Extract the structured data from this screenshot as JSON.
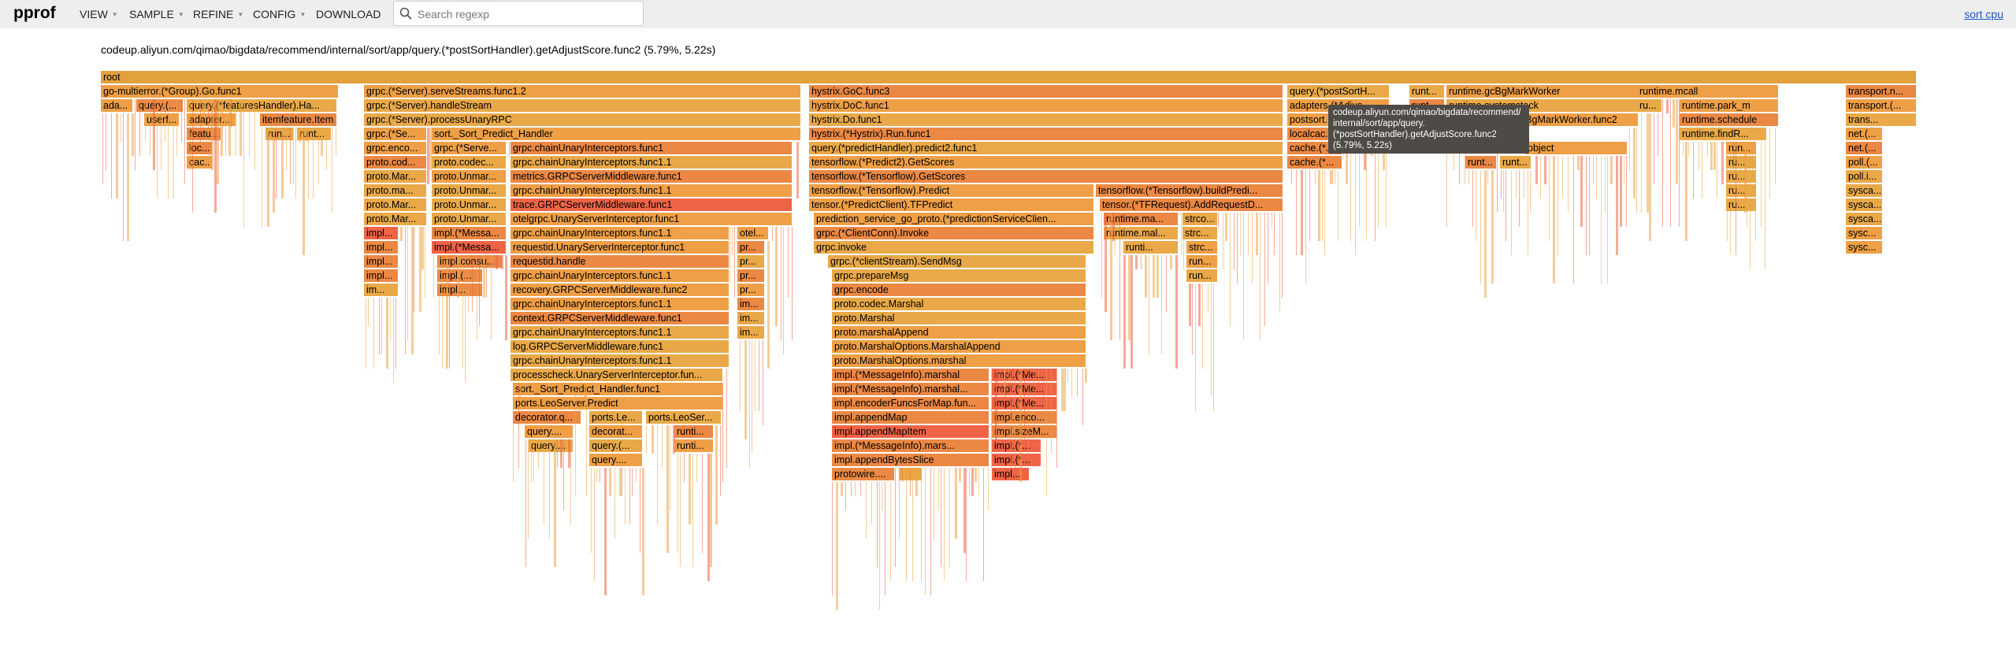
{
  "app": {
    "name": "pprof"
  },
  "menu": {
    "view": "VIEW",
    "sample": "SAMPLE",
    "refine": "REFINE",
    "config": "CONFIG",
    "download": "DOWNLOAD"
  },
  "search": {
    "placeholder": "Search regexp",
    "value": ""
  },
  "sort_link": "sort cpu",
  "details": "codeup.aliyun.com/qimao/bigdata/recommend/internal/sort/app/query.(*postSortHandler).getAdjustScore.func2 (5.79%, 5.22s)",
  "tooltip": {
    "line1": "codeup.aliyun.com/qimao/bigdata/recommend/",
    "line2": "internal/sort/app/query.",
    "line3": "(*postSortHandler).getAdjustScore.func2",
    "line4": "(5.79%, 5.22s)"
  },
  "colors": {
    "root": "#e3a13d",
    "orange": "#ef9f45",
    "amber": "#e9a948",
    "deep_orange": "#eb8944",
    "red": "#ef6346",
    "link": "#1a56c6"
  },
  "flame": {
    "frames": [
      {
        "d": 0,
        "s": 128,
        "e": 2433,
        "t": "root"
      },
      {
        "d": 1,
        "s": 128,
        "e": 430,
        "t": "go-multierror.(*Group).Go.func1"
      },
      {
        "d": 1,
        "s": 462,
        "e": 1017,
        "t": "grpc.(*Server).serveStreams.func1.2"
      },
      {
        "d": 1,
        "s": 1027,
        "e": 1629,
        "t": "hystrix.GoC.func3"
      },
      {
        "d": 1,
        "s": 1634,
        "e": 1764,
        "t": "query.(*postSortH..."
      },
      {
        "d": 1,
        "s": 1789,
        "e": 1834,
        "t": "runt..."
      },
      {
        "d": 1,
        "s": 1836,
        "e": 2080,
        "t": "runtime.gcBgMarkWorker"
      },
      {
        "d": 1,
        "s": 2078,
        "e": 2258,
        "t": "runtime.mcall"
      },
      {
        "d": 1,
        "s": 2343,
        "e": 2433,
        "t": "transport.n..."
      },
      {
        "d": 2,
        "s": 128,
        "e": 169,
        "t": "ada..."
      },
      {
        "d": 2,
        "s": 173,
        "e": 233,
        "t": "query.(..."
      },
      {
        "d": 2,
        "s": 237,
        "e": 428,
        "t": "query.(*featuresHandler).Ha..."
      },
      {
        "d": 2,
        "s": 462,
        "e": 1017,
        "t": "grpc.(*Server).handleStream"
      },
      {
        "d": 2,
        "s": 1027,
        "e": 1629,
        "t": "hystrix.DoC.func1"
      },
      {
        "d": 2,
        "s": 1634,
        "e": 1764,
        "t": "adapters.(*Adjus..."
      },
      {
        "d": 2,
        "s": 1789,
        "e": 1834,
        "t": "runt..."
      },
      {
        "d": 2,
        "s": 1836,
        "e": 2080,
        "t": "runtime.systemstack"
      },
      {
        "d": 2,
        "s": 2078,
        "e": 2110,
        "t": "ru..."
      },
      {
        "d": 2,
        "s": 2132,
        "e": 2258,
        "t": "runtime.park_m"
      },
      {
        "d": 2,
        "s": 2343,
        "e": 2433,
        "t": "transport.(..."
      },
      {
        "d": 3,
        "s": 183,
        "e": 228,
        "t": "userf..."
      },
      {
        "d": 3,
        "s": 237,
        "e": 300,
        "t": "adapter..."
      },
      {
        "d": 3,
        "s": 330,
        "e": 428,
        "t": "itemfeature.Item..."
      },
      {
        "d": 3,
        "s": 462,
        "e": 1017,
        "t": "grpc.(*Server).processUnaryRPC"
      },
      {
        "d": 3,
        "s": 1027,
        "e": 1629,
        "t": "hystrix.Do.func1"
      },
      {
        "d": 3,
        "s": 1634,
        "e": 1764,
        "t": "postsort..."
      },
      {
        "d": 3,
        "s": 1920,
        "e": 2080,
        "t": "gcBgMarkWorker.func2"
      },
      {
        "d": 3,
        "s": 2132,
        "e": 2258,
        "t": "runtime.schedule"
      },
      {
        "d": 3,
        "s": 2343,
        "e": 2433,
        "t": "trans..."
      },
      {
        "d": 4,
        "s": 237,
        "e": 281,
        "t": "featu..."
      },
      {
        "d": 4,
        "s": 337,
        "e": 373,
        "t": "run..."
      },
      {
        "d": 4,
        "s": 377,
        "e": 421,
        "t": "runt..."
      },
      {
        "d": 4,
        "s": 462,
        "e": 542,
        "t": "grpc.(*Se..."
      },
      {
        "d": 4,
        "s": 548,
        "e": 1017,
        "t": "sort._Sort_Predict_Handler"
      },
      {
        "d": 4,
        "s": 1027,
        "e": 1629,
        "t": "hystrix.(*Hystrix).Run.func1"
      },
      {
        "d": 4,
        "s": 1634,
        "e": 1700,
        "t": "localcac..."
      },
      {
        "d": 4,
        "s": 2132,
        "e": 2243,
        "t": "runtime.findR..."
      },
      {
        "d": 4,
        "s": 2343,
        "e": 2390,
        "t": "net.(..."
      },
      {
        "d": 5,
        "s": 237,
        "e": 270,
        "t": "loc..."
      },
      {
        "d": 5,
        "s": 462,
        "e": 542,
        "t": "grpc.enco..."
      },
      {
        "d": 5,
        "s": 548,
        "e": 643,
        "t": "grpc.(*Serve..."
      },
      {
        "d": 5,
        "s": 648,
        "e": 1006,
        "t": "grpc.chainUnaryInterceptors.func1"
      },
      {
        "d": 5,
        "s": 1027,
        "e": 1629,
        "t": "query.(*predictHandler).predict2.func1"
      },
      {
        "d": 5,
        "s": 1634,
        "e": 1704,
        "t": "cache.(*..."
      },
      {
        "d": 5,
        "s": 1936,
        "e": 2066,
        "t": "object"
      },
      {
        "d": 5,
        "s": 2191,
        "e": 2230,
        "t": "run..."
      },
      {
        "d": 5,
        "s": 2343,
        "e": 2390,
        "t": "net.(..."
      },
      {
        "d": 6,
        "s": 237,
        "e": 270,
        "t": "cac..."
      },
      {
        "d": 6,
        "s": 462,
        "e": 542,
        "t": "proto.cod..."
      },
      {
        "d": 6,
        "s": 548,
        "e": 643,
        "t": "proto.codec..."
      },
      {
        "d": 6,
        "s": 648,
        "e": 1006,
        "t": "grpc.chainUnaryInterceptors.func1.1"
      },
      {
        "d": 6,
        "s": 1027,
        "e": 1629,
        "t": "tensorflow.(*Predict2).GetScores"
      },
      {
        "d": 6,
        "s": 1634,
        "e": 1704,
        "t": "cache.(*..."
      },
      {
        "d": 6,
        "s": 1860,
        "e": 1900,
        "t": "runt..."
      },
      {
        "d": 6,
        "s": 1904,
        "e": 1944,
        "t": "runt..."
      },
      {
        "d": 6,
        "s": 2191,
        "e": 2230,
        "t": "ru..."
      },
      {
        "d": 6,
        "s": 2343,
        "e": 2390,
        "t": "poll.(..."
      },
      {
        "d": 7,
        "s": 462,
        "e": 542,
        "t": "proto.Mar..."
      },
      {
        "d": 7,
        "s": 548,
        "e": 643,
        "t": "proto.Unmar..."
      },
      {
        "d": 7,
        "s": 648,
        "e": 1006,
        "t": "metrics.GRPCServerMiddleware.func1"
      },
      {
        "d": 7,
        "s": 1027,
        "e": 1629,
        "t": "tensorflow.(*Tensorflow).GetScores"
      },
      {
        "d": 7,
        "s": 2191,
        "e": 2230,
        "t": "ru..."
      },
      {
        "d": 7,
        "s": 2343,
        "e": 2390,
        "t": "poll.i..."
      },
      {
        "d": 8,
        "s": 462,
        "e": 542,
        "t": "proto.ma..."
      },
      {
        "d": 8,
        "s": 548,
        "e": 643,
        "t": "proto.Unmar..."
      },
      {
        "d": 8,
        "s": 648,
        "e": 1006,
        "t": "grpc.chainUnaryInterceptors.func1.1"
      },
      {
        "d": 8,
        "s": 1027,
        "e": 1389,
        "t": "tensorflow.(*Tensorflow).Predict"
      },
      {
        "d": 8,
        "s": 1391,
        "e": 1629,
        "t": "tensorflow.(*Tensorflow).buildPredi..."
      },
      {
        "d": 8,
        "s": 2191,
        "e": 2230,
        "t": "ru..."
      },
      {
        "d": 8,
        "s": 2343,
        "e": 2390,
        "t": "sysca..."
      },
      {
        "d": 9,
        "s": 462,
        "e": 542,
        "t": "proto.Mar..."
      },
      {
        "d": 9,
        "s": 548,
        "e": 643,
        "t": "proto.Unmar..."
      },
      {
        "d": 9,
        "s": 648,
        "e": 1006,
        "t": "trace.GRPCServerMiddleware.func1"
      },
      {
        "d": 9,
        "s": 1027,
        "e": 1389,
        "t": "tensor.(*PredictClient).TFPredict"
      },
      {
        "d": 9,
        "s": 1396,
        "e": 1629,
        "t": "tensor.(*TFRequest).AddRequestD..."
      },
      {
        "d": 9,
        "s": 2191,
        "e": 2230,
        "t": "ru..."
      },
      {
        "d": 9,
        "s": 2343,
        "e": 2390,
        "t": "sysca..."
      },
      {
        "d": 10,
        "s": 462,
        "e": 542,
        "t": "proto.Mar..."
      },
      {
        "d": 10,
        "s": 548,
        "e": 643,
        "t": "proto.Unmar..."
      },
      {
        "d": 10,
        "s": 648,
        "e": 1006,
        "t": "otelgrpc.UnaryServerInterceptor.func1"
      },
      {
        "d": 10,
        "s": 1033,
        "e": 1389,
        "t": "prediction_service_go_proto.(*predictionServiceClien..."
      },
      {
        "d": 10,
        "s": 1401,
        "e": 1496,
        "t": "runtime.ma..."
      },
      {
        "d": 10,
        "s": 1501,
        "e": 1546,
        "t": "strco..."
      },
      {
        "d": 10,
        "s": 2343,
        "e": 2390,
        "t": "sysca..."
      },
      {
        "d": 11,
        "s": 462,
        "e": 506,
        "t": "impl..."
      },
      {
        "d": 11,
        "s": 548,
        "e": 643,
        "t": "impl.(*Messa..."
      },
      {
        "d": 11,
        "s": 648,
        "e": 926,
        "t": "grpc.chainUnaryInterceptors.func1.1"
      },
      {
        "d": 11,
        "s": 936,
        "e": 976,
        "t": "otel..."
      },
      {
        "d": 11,
        "s": 1033,
        "e": 1389,
        "t": "grpc.(*ClientConn).Invoke"
      },
      {
        "d": 11,
        "s": 1401,
        "e": 1496,
        "t": "runtime.mal..."
      },
      {
        "d": 11,
        "s": 1501,
        "e": 1546,
        "t": "strc..."
      },
      {
        "d": 11,
        "s": 2343,
        "e": 2390,
        "t": "sysc..."
      },
      {
        "d": 12,
        "s": 462,
        "e": 506,
        "t": "impl..."
      },
      {
        "d": 12,
        "s": 548,
        "e": 643,
        "t": "impl.(*Messa..."
      },
      {
        "d": 12,
        "s": 648,
        "e": 926,
        "t": "requestid.UnaryServerInterceptor.func1"
      },
      {
        "d": 12,
        "s": 936,
        "e": 971,
        "t": "pr..."
      },
      {
        "d": 12,
        "s": 1033,
        "e": 1389,
        "t": "grpc.invoke"
      },
      {
        "d": 12,
        "s": 1426,
        "e": 1496,
        "t": "runti..."
      },
      {
        "d": 12,
        "s": 1506,
        "e": 1546,
        "t": "strc..."
      },
      {
        "d": 12,
        "s": 2343,
        "e": 2390,
        "t": "sysc..."
      },
      {
        "d": 13,
        "s": 462,
        "e": 506,
        "t": "impl..."
      },
      {
        "d": 13,
        "s": 555,
        "e": 638,
        "t": "impl.consu..."
      },
      {
        "d": 13,
        "s": 648,
        "e": 926,
        "t": "requestid.handle"
      },
      {
        "d": 13,
        "s": 936,
        "e": 971,
        "t": "pr..."
      },
      {
        "d": 13,
        "s": 1051,
        "e": 1379,
        "t": "grpc.(*clientStream).SendMsg"
      },
      {
        "d": 13,
        "s": 1506,
        "e": 1546,
        "t": "run..."
      },
      {
        "d": 14,
        "s": 462,
        "e": 506,
        "t": "impl..."
      },
      {
        "d": 14,
        "s": 555,
        "e": 613,
        "t": "impl.(..."
      },
      {
        "d": 14,
        "s": 648,
        "e": 926,
        "t": "grpc.chainUnaryInterceptors.func1.1"
      },
      {
        "d": 14,
        "s": 936,
        "e": 971,
        "t": "pr..."
      },
      {
        "d": 14,
        "s": 1056,
        "e": 1379,
        "t": "grpc.prepareMsg"
      },
      {
        "d": 14,
        "s": 1506,
        "e": 1546,
        "t": "run..."
      },
      {
        "d": 15,
        "s": 462,
        "e": 506,
        "t": "im..."
      },
      {
        "d": 15,
        "s": 555,
        "e": 613,
        "t": "impl..."
      },
      {
        "d": 15,
        "s": 648,
        "e": 926,
        "t": "recovery.GRPCServerMiddleware.func2"
      },
      {
        "d": 15,
        "s": 936,
        "e": 971,
        "t": "pr..."
      },
      {
        "d": 15,
        "s": 1056,
        "e": 1379,
        "t": "grpc.encode"
      },
      {
        "d": 16,
        "s": 648,
        "e": 926,
        "t": "grpc.chainUnaryInterceptors.func1.1"
      },
      {
        "d": 16,
        "s": 936,
        "e": 971,
        "t": "im..."
      },
      {
        "d": 16,
        "s": 1056,
        "e": 1379,
        "t": "proto.codec.Marshal"
      },
      {
        "d": 17,
        "s": 648,
        "e": 926,
        "t": "context.GRPCServerMiddleware.func1"
      },
      {
        "d": 17,
        "s": 936,
        "e": 971,
        "t": "im..."
      },
      {
        "d": 17,
        "s": 1056,
        "e": 1379,
        "t": "proto.Marshal"
      },
      {
        "d": 18,
        "s": 648,
        "e": 926,
        "t": "grpc.chainUnaryInterceptors.func1.1"
      },
      {
        "d": 18,
        "s": 936,
        "e": 971,
        "t": "im..."
      },
      {
        "d": 18,
        "s": 1056,
        "e": 1379,
        "t": "proto.marshalAppend"
      },
      {
        "d": 19,
        "s": 648,
        "e": 926,
        "t": "log.GRPCServerMiddleware.func1"
      },
      {
        "d": 19,
        "s": 1056,
        "e": 1379,
        "t": "proto.MarshalOptions.MarshalAppend"
      },
      {
        "d": 20,
        "s": 648,
        "e": 926,
        "t": "grpc.chainUnaryInterceptors.func1.1"
      },
      {
        "d": 20,
        "s": 1056,
        "e": 1379,
        "t": "proto.MarshalOptions.marshal"
      },
      {
        "d": 21,
        "s": 648,
        "e": 918,
        "t": "processcheck.UnaryServerInterceptor.fun..."
      },
      {
        "d": 21,
        "s": 1056,
        "e": 1256,
        "t": "impl.(*MessageInfo).marshal"
      },
      {
        "d": 21,
        "s": 1259,
        "e": 1342,
        "t": "impl.(*Me..."
      },
      {
        "d": 22,
        "s": 651,
        "e": 918,
        "t": "sort._Sort_Predict_Handler.func1"
      },
      {
        "d": 22,
        "s": 1056,
        "e": 1256,
        "t": "impl.(*MessageInfo).marshal..."
      },
      {
        "d": 22,
        "s": 1259,
        "e": 1342,
        "t": "impl.(*Me..."
      },
      {
        "d": 23,
        "s": 651,
        "e": 918,
        "t": "ports.LeoServer.Predict"
      },
      {
        "d": 23,
        "s": 1056,
        "e": 1256,
        "t": "impl.encoderFuncsForMap.fun..."
      },
      {
        "d": 23,
        "s": 1259,
        "e": 1342,
        "t": "impl.(*Me..."
      },
      {
        "d": 24,
        "s": 651,
        "e": 738,
        "t": "decorator.q..."
      },
      {
        "d": 24,
        "s": 748,
        "e": 816,
        "t": "ports.Le..."
      },
      {
        "d": 24,
        "s": 820,
        "e": 916,
        "t": "ports.LeoSer..."
      },
      {
        "d": 24,
        "s": 1056,
        "e": 1256,
        "t": "impl.appendMap"
      },
      {
        "d": 24,
        "s": 1259,
        "e": 1342,
        "t": "impl.enco..."
      },
      {
        "d": 25,
        "s": 666,
        "e": 728,
        "t": "query...."
      },
      {
        "d": 25,
        "s": 748,
        "e": 816,
        "t": "decorat..."
      },
      {
        "d": 25,
        "s": 856,
        "e": 906,
        "t": "runti..."
      },
      {
        "d": 25,
        "s": 1056,
        "e": 1256,
        "t": "impl.appendMapItem"
      },
      {
        "d": 25,
        "s": 1259,
        "e": 1342,
        "t": "impl.sizeM..."
      },
      {
        "d": 26,
        "s": 671,
        "e": 728,
        "t": "query...."
      },
      {
        "d": 26,
        "s": 748,
        "e": 816,
        "t": "query.(..."
      },
      {
        "d": 26,
        "s": 856,
        "e": 906,
        "t": "runti..."
      },
      {
        "d": 26,
        "s": 1056,
        "e": 1256,
        "t": "impl.(*MessageInfo).mars..."
      },
      {
        "d": 26,
        "s": 1259,
        "e": 1322,
        "t": "impl.(*..."
      },
      {
        "d": 27,
        "s": 748,
        "e": 816,
        "t": "query...."
      },
      {
        "d": 27,
        "s": 1056,
        "e": 1256,
        "t": "impl.appendBytesSlice"
      },
      {
        "d": 27,
        "s": 1259,
        "e": 1322,
        "t": "impl.(*..."
      },
      {
        "d": 28,
        "s": 1056,
        "e": 1136,
        "t": "protowire...."
      },
      {
        "d": 28,
        "s": 1141,
        "e": 1171,
        "t": ""
      },
      {
        "d": 28,
        "s": 1259,
        "e": 1307,
        "t": "impl..."
      }
    ]
  }
}
